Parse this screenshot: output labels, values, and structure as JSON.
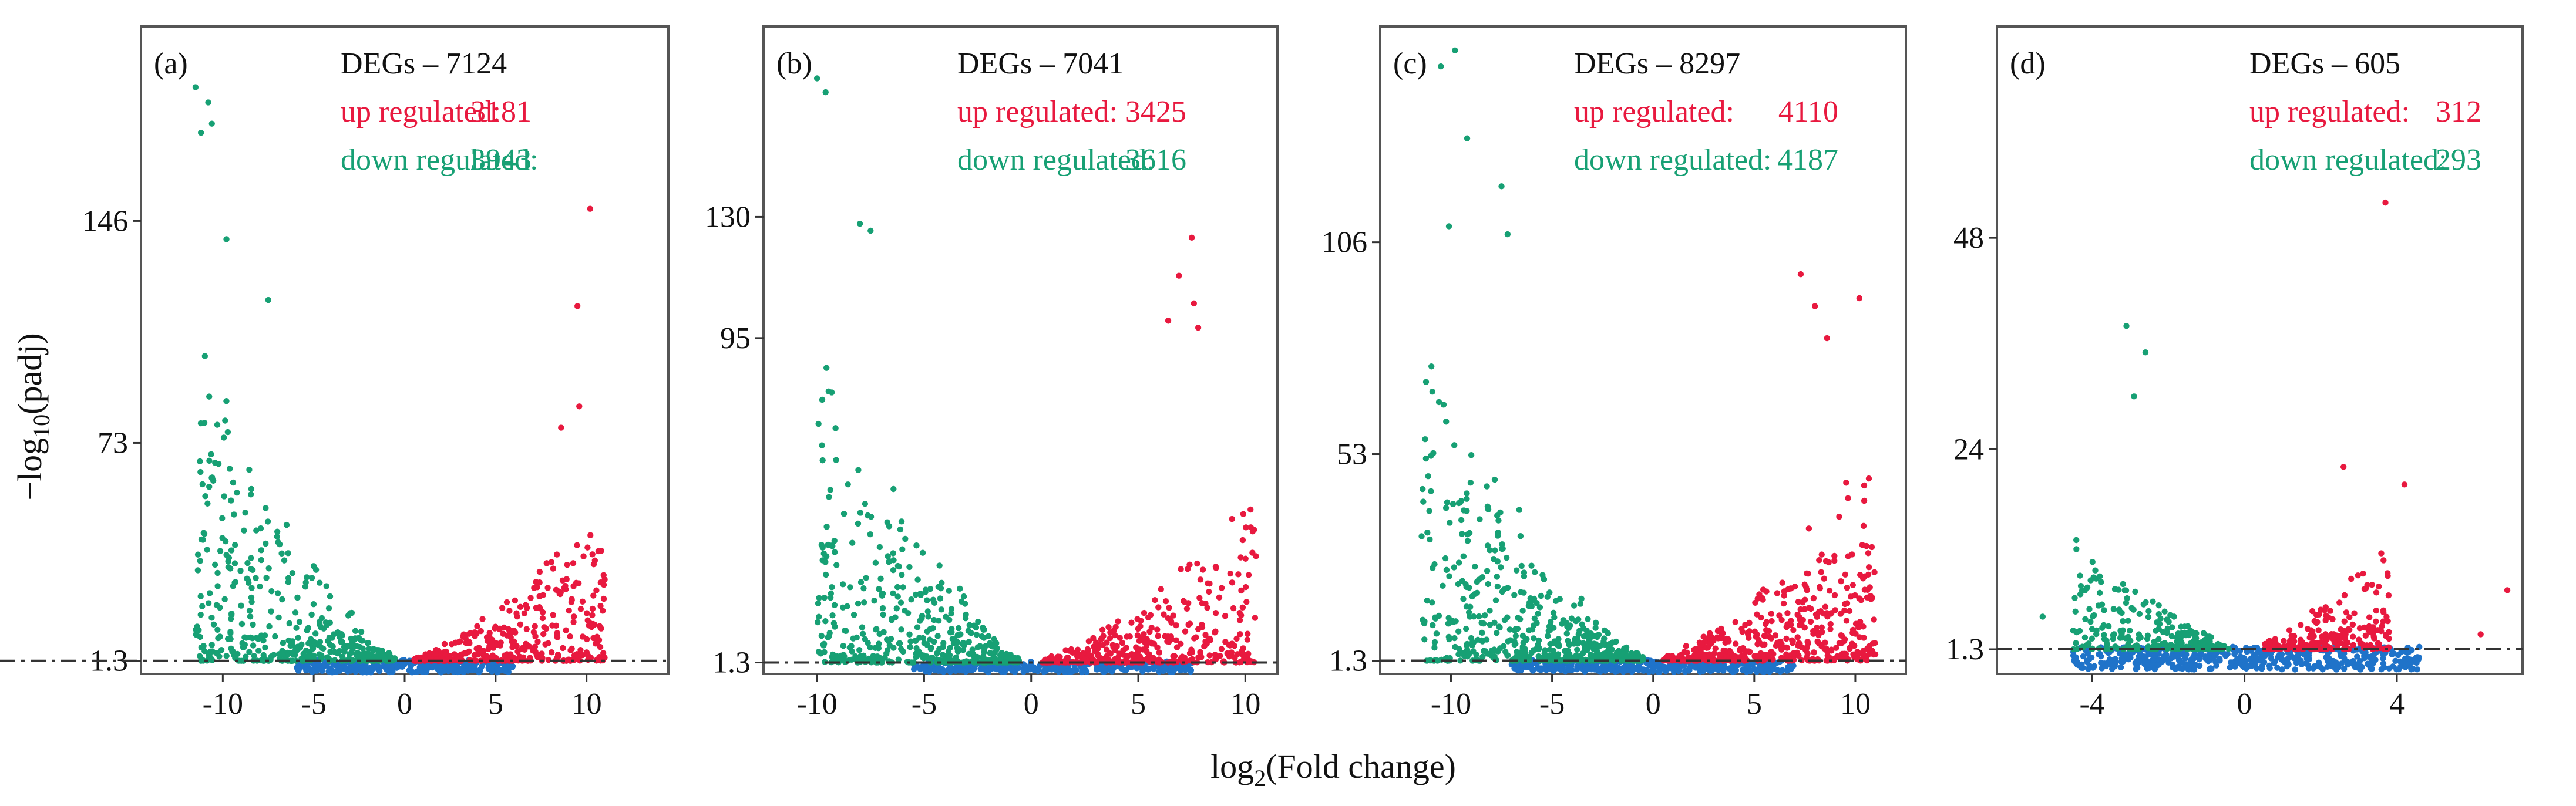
{
  "figure": {
    "ylabel": "−log10(padj)",
    "xlabel": "log2(Fold change)",
    "colors": {
      "up": "#e8193f",
      "down": "#17a074",
      "ns": "#1f73c9",
      "text_dark": "#111111",
      "threshold": "#333333"
    }
  },
  "chart_data": [
    {
      "type": "scatter",
      "panel_label": "(a)",
      "degs_label": "DEGs – 7124",
      "up_label": "up regulated:",
      "up_count": "3181",
      "down_label": "down regulated:",
      "down_count": "3943",
      "threshold": 1.3,
      "xlim": [
        -14.5,
        14.5
      ],
      "ylim": [
        -3,
        210
      ],
      "xticks": [
        -10,
        -5,
        0,
        5,
        10
      ],
      "xtick_labels": [
        "-10",
        "-5",
        "0",
        "5",
        "10"
      ],
      "yticks": [
        1.3,
        73,
        146
      ],
      "ytick_labels": [
        "1.3",
        "73",
        "146"
      ],
      "spread": {
        "down_x": [
          -11.5,
          -0.5
        ],
        "up_x": [
          0.5,
          11
        ],
        "ns_x": [
          -6,
          6
        ],
        "down_y": 120,
        "up_y": 60,
        "n_down": 420,
        "n_up": 380,
        "n_ns": 340
      },
      "outliers": [
        {
          "x": -11.5,
          "y": 190,
          "cls": "down"
        },
        {
          "x": -10.8,
          "y": 185,
          "cls": "down"
        },
        {
          "x": -11.2,
          "y": 175,
          "cls": "down"
        },
        {
          "x": -10.6,
          "y": 178,
          "cls": "down"
        },
        {
          "x": -9.8,
          "y": 140,
          "cls": "down"
        },
        {
          "x": -7.5,
          "y": 120,
          "cls": "down"
        },
        {
          "x": 10.2,
          "y": 150,
          "cls": "up"
        },
        {
          "x": 9.5,
          "y": 118,
          "cls": "up"
        },
        {
          "x": 9.6,
          "y": 85,
          "cls": "up"
        },
        {
          "x": 8.6,
          "y": 78,
          "cls": "up"
        }
      ]
    },
    {
      "type": "scatter",
      "panel_label": "(b)",
      "degs_label": "DEGs – 7041",
      "up_label": "up regulated:",
      "up_count": "3425",
      "down_label": "down regulated:",
      "down_count": "3616",
      "threshold": 1.3,
      "xlim": [
        -12.5,
        11.5
      ],
      "ylim": [
        -2,
        185
      ],
      "xticks": [
        -10,
        -5,
        0,
        5,
        10
      ],
      "xtick_labels": [
        "-10",
        "-5",
        "0",
        "5",
        "10"
      ],
      "yticks": [
        1.3,
        95,
        130
      ],
      "ytick_labels": [
        "1.3",
        "95",
        "130"
      ],
      "y_display_pos": [
        1.3,
        95,
        130
      ],
      "spread": {
        "down_x": [
          -10,
          -0.5
        ],
        "up_x": [
          0.5,
          10.5
        ],
        "ns_x": [
          -5.5,
          7.5
        ],
        "down_y": 105,
        "up_y": 55,
        "n_down": 420,
        "n_up": 380,
        "n_ns": 340
      },
      "outliers": [
        {
          "x": -10,
          "y": 170,
          "cls": "down"
        },
        {
          "x": -9.6,
          "y": 166,
          "cls": "down"
        },
        {
          "x": -8,
          "y": 128,
          "cls": "down"
        },
        {
          "x": -7.5,
          "y": 126,
          "cls": "down"
        },
        {
          "x": 7.5,
          "y": 124,
          "cls": "up"
        },
        {
          "x": 6.9,
          "y": 113,
          "cls": "up"
        },
        {
          "x": 7.6,
          "y": 105,
          "cls": "up"
        },
        {
          "x": 6.4,
          "y": 100,
          "cls": "up"
        },
        {
          "x": 7.8,
          "y": 98,
          "cls": "up"
        },
        {
          "x": 10.5,
          "y": 32,
          "cls": "up"
        }
      ]
    },
    {
      "type": "scatter",
      "panel_label": "(c)",
      "degs_label": "DEGs – 8297",
      "up_label": "up regulated:",
      "up_count": "4110",
      "down_label": "down regulated:",
      "down_count": "4187",
      "threshold": 1.3,
      "xlim": [
        -13.5,
        12.5
      ],
      "ylim": [
        -2,
        160
      ],
      "xticks": [
        -10,
        -5,
        0,
        5,
        10
      ],
      "xtick_labels": [
        "-10",
        "-5",
        "0",
        "5",
        "10"
      ],
      "yticks": [
        1.3,
        53,
        106
      ],
      "ytick_labels": [
        "1.3",
        "53",
        "106"
      ],
      "spread": {
        "down_x": [
          -11.5,
          -0.5
        ],
        "up_x": [
          0.5,
          11
        ],
        "ns_x": [
          -7,
          7
        ],
        "down_y": 85,
        "up_y": 60,
        "n_down": 520,
        "n_up": 480,
        "n_ns": 380
      },
      "outliers": [
        {
          "x": -10.5,
          "y": 150,
          "cls": "down"
        },
        {
          "x": -9.8,
          "y": 154,
          "cls": "down"
        },
        {
          "x": -9.2,
          "y": 132,
          "cls": "down"
        },
        {
          "x": -7.5,
          "y": 120,
          "cls": "down"
        },
        {
          "x": -10.1,
          "y": 110,
          "cls": "down"
        },
        {
          "x": -7.2,
          "y": 108,
          "cls": "down"
        },
        {
          "x": 7.3,
          "y": 98,
          "cls": "up"
        },
        {
          "x": 10.2,
          "y": 92,
          "cls": "up"
        },
        {
          "x": 8,
          "y": 90,
          "cls": "up"
        },
        {
          "x": 8.6,
          "y": 82,
          "cls": "up"
        }
      ]
    },
    {
      "type": "scatter",
      "panel_label": "(d)",
      "degs_label": "DEGs – 605",
      "up_label": "up regulated:",
      "up_count": "312",
      "down_label": "down regulated:",
      "down_count": "293",
      "threshold": 1.3,
      "xlim": [
        -6.5,
        7.3
      ],
      "ylim": [
        -1.5,
        72
      ],
      "xticks": [
        -4,
        0,
        4
      ],
      "xtick_labels": [
        "-4",
        "0",
        "4"
      ],
      "yticks": [
        1.3,
        24,
        48
      ],
      "ytick_labels": [
        "1.3",
        "24",
        "48"
      ],
      "spread": {
        "down_x": [
          -4.5,
          -0.4
        ],
        "up_x": [
          0.5,
          3.8
        ],
        "ns_x": [
          -4.5,
          4.6
        ],
        "down_y": 18,
        "up_y": 14,
        "n_down": 230,
        "n_up": 220,
        "n_ns": 520
      },
      "outliers": [
        {
          "x": 3.7,
          "y": 52,
          "cls": "up"
        },
        {
          "x": -3.1,
          "y": 38,
          "cls": "down"
        },
        {
          "x": -2.6,
          "y": 35,
          "cls": "down"
        },
        {
          "x": -2.9,
          "y": 30,
          "cls": "down"
        },
        {
          "x": 2.6,
          "y": 22,
          "cls": "up"
        },
        {
          "x": 4.2,
          "y": 20,
          "cls": "up"
        },
        {
          "x": 6.9,
          "y": 8,
          "cls": "up"
        },
        {
          "x": 6.2,
          "y": 3,
          "cls": "up"
        },
        {
          "x": -5.3,
          "y": 5,
          "cls": "down"
        }
      ]
    }
  ]
}
